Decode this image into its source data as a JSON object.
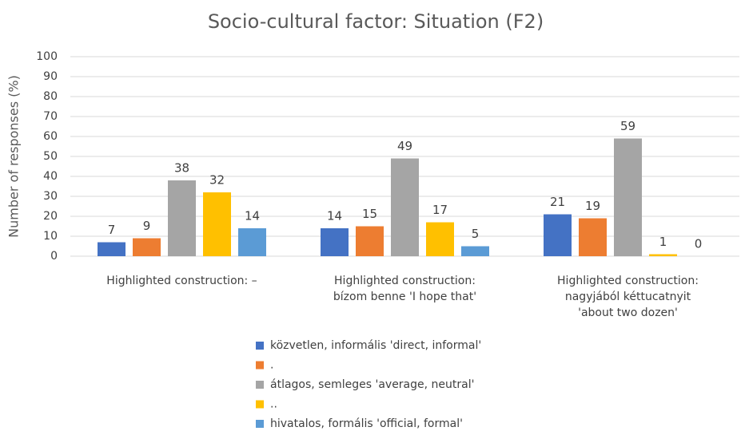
{
  "chart_data": {
    "type": "bar",
    "title": "Socio-cultural factor: Situation (F2)",
    "y_label": "Number of responses (%)",
    "categories": [
      [
        "Highlighted construction: –"
      ],
      [
        "Highlighted construction:",
        "bízom benne 'I hope that'"
      ],
      [
        "Highlighted construction:",
        "nagyjából kéttucatnyit",
        "'about two dozen'"
      ]
    ],
    "series": [
      {
        "name": "közvetlen, informális 'direct, informal'",
        "color": "#4472c4",
        "values": [
          7,
          14,
          21
        ]
      },
      {
        "name": ".",
        "color": "#ed7d31",
        "values": [
          9,
          15,
          19
        ]
      },
      {
        "name": "átlagos, semleges 'average, neutral'",
        "color": "#a5a5a5",
        "values": [
          38,
          49,
          59
        ]
      },
      {
        "name": "..",
        "color": "#ffc000",
        "values": [
          32,
          17,
          1
        ]
      },
      {
        "name": "hivatalos, formális 'official, formal'",
        "color": "#5b9bd5",
        "values": [
          14,
          5,
          0
        ]
      }
    ],
    "ylim": [
      0,
      100
    ],
    "yticks": [
      0,
      10,
      20,
      30,
      40,
      50,
      60,
      70,
      80,
      90,
      100
    ],
    "grid": true,
    "legend": "bottom"
  }
}
